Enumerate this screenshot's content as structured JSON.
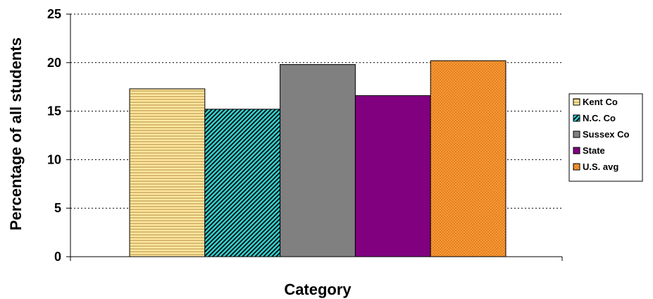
{
  "chart_data": {
    "type": "bar",
    "xlabel": "Category",
    "ylabel": "Percentage of all students",
    "ylim": [
      0,
      25
    ],
    "yticks": [
      0,
      5,
      10,
      15,
      20,
      25
    ],
    "grid": "horizontal-dotted",
    "legend_position": "right",
    "series": [
      {
        "name": "Kent Co",
        "value": 17.3,
        "color": "#FFE8A0",
        "pattern": "horizontal-lines"
      },
      {
        "name": "N.C. Co",
        "value": 15.2,
        "color": "#33CCCC",
        "pattern": "diagonal-lines"
      },
      {
        "name": "Sussex Co",
        "value": 19.8,
        "color": "#808080",
        "pattern": "solid"
      },
      {
        "name": "State",
        "value": 16.6,
        "color": "#800080",
        "pattern": "solid"
      },
      {
        "name": "U.S. avg",
        "value": 20.2,
        "color": "#FF9933",
        "pattern": "dots"
      }
    ]
  }
}
